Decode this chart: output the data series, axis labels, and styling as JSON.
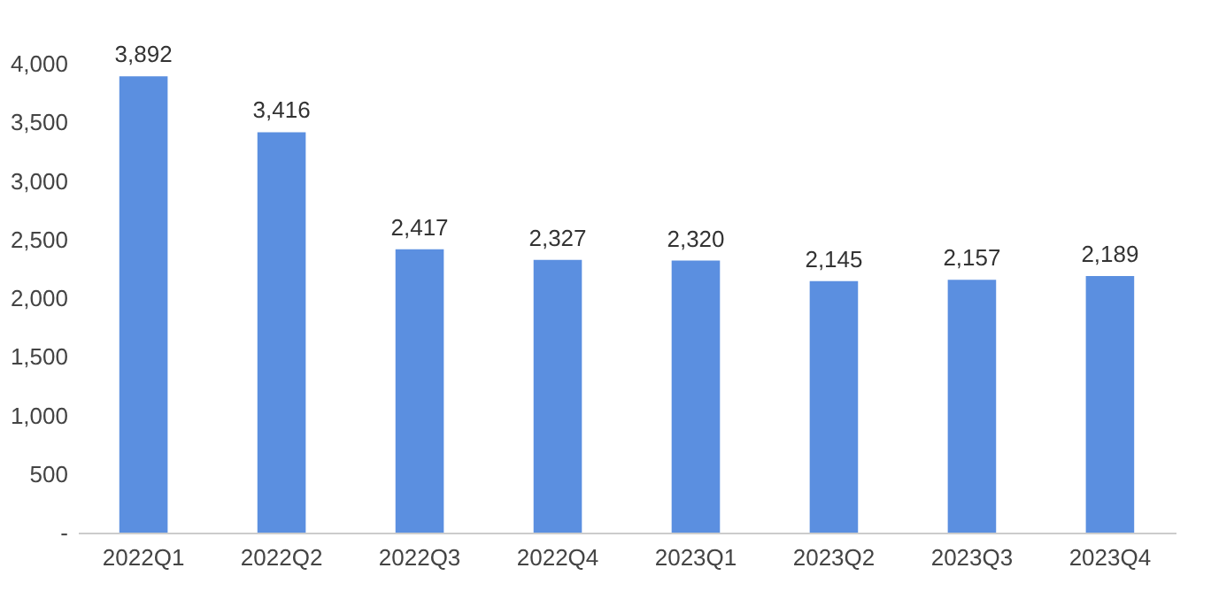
{
  "chart_data": {
    "type": "bar",
    "categories": [
      "2022Q1",
      "2022Q2",
      "2022Q3",
      "2022Q4",
      "2023Q1",
      "2023Q2",
      "2023Q3",
      "2023Q4"
    ],
    "values": [
      3892,
      3416,
      2417,
      2327,
      2320,
      2145,
      2157,
      2189
    ],
    "value_labels": [
      "3,892",
      "3,416",
      "2,417",
      "2,327",
      "2,320",
      "2,145",
      "2,157",
      "2,189"
    ],
    "color": "#5b8fe0",
    "ylim": [
      0,
      4000
    ],
    "yticks": [
      {
        "value": 0,
        "label": "-"
      },
      500,
      {
        "value": 1000,
        "label": "1,000"
      },
      {
        "value": 1500,
        "label": "1,500"
      },
      {
        "value": 2000,
        "label": "2,000"
      },
      {
        "value": 2500,
        "label": "2,500"
      },
      {
        "value": 3000,
        "label": "3,000"
      },
      {
        "value": 3500,
        "label": "3,500"
      },
      {
        "value": 4000,
        "label": "4,000"
      }
    ],
    "grid": false
  }
}
